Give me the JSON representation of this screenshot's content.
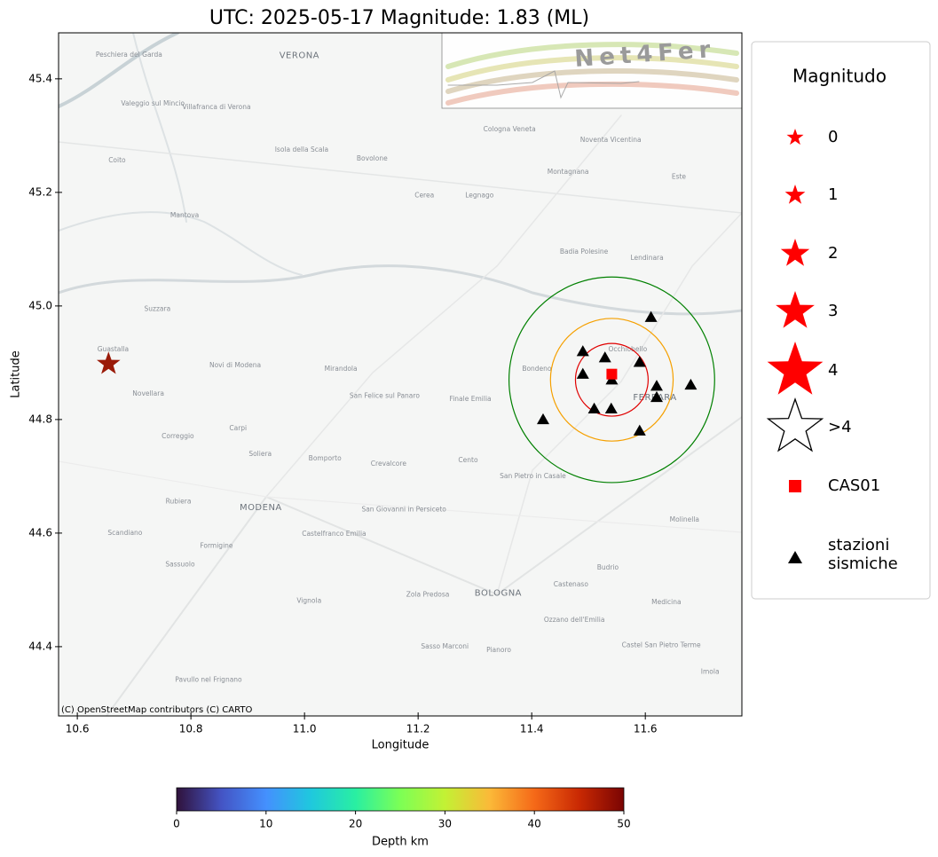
{
  "chart_data": {
    "type": "map",
    "title": "UTC: 2025-05-17 Magnitude: 1.83 (ML)",
    "x_label": "Longitude",
    "y_label": "Latitude",
    "xlim": [
      10.567,
      11.77
    ],
    "ylim": [
      44.278,
      45.481
    ],
    "xticks": [
      10.6,
      10.8,
      {
        "value": 11,
        "label": "11.0"
      },
      11.2,
      11.4,
      11.6
    ],
    "yticks": [
      44.4,
      44.6,
      44.8,
      {
        "value": 45,
        "label": "45.0"
      },
      45.2,
      45.4
    ],
    "attribution": "(C) OpenStreetMap contributors (C) CARTO",
    "logo_text": "Net4Fer",
    "epicenter": {
      "lon": 10.655,
      "lat": 44.898,
      "color": "#9a1a08"
    },
    "site": {
      "name": "CAS01",
      "lon": 11.541,
      "lat": 44.88,
      "color": "#ff0000"
    },
    "rings": {
      "lon": 11.541,
      "lat": 44.87,
      "radii": [
        0.064,
        0.108,
        0.181
      ],
      "colors": [
        "#e00000",
        "#f5a000",
        "#008000"
      ]
    },
    "stations": {
      "color": "#000000",
      "lon": [
        11.61,
        11.49,
        11.529,
        11.59,
        11.49,
        11.541,
        11.62,
        11.68,
        11.62,
        11.42,
        11.51,
        11.54,
        11.59
      ],
      "lat": [
        44.98,
        44.92,
        44.909,
        44.901,
        44.88,
        44.87,
        44.859,
        44.861,
        44.839,
        44.8,
        44.819,
        44.819,
        44.78
      ]
    },
    "legend": {
      "title": "Magnitudo",
      "magnitudes": [
        "0",
        "1",
        "2",
        "3",
        "4",
        ">4"
      ],
      "star_color": "#ff0000",
      "site_label": "CAS01",
      "station_label": [
        "stazioni",
        "sismiche"
      ]
    },
    "colorbar": {
      "label": "Depth km",
      "colormap": "turbo",
      "lim": [
        0,
        50
      ],
      "ticks": [
        0,
        10,
        20,
        30,
        40,
        50
      ]
    },
    "map_labels": [
      {
        "name": "VERONA",
        "lon": 10.991,
        "lat": 45.441,
        "major": true
      },
      {
        "name": "Peschiera del Garda",
        "lon": 10.691,
        "lat": 45.442
      },
      {
        "name": "Valeggio sul Mincio",
        "lon": 10.733,
        "lat": 45.356
      },
      {
        "name": "Villafranca di Verona",
        "lon": 10.845,
        "lat": 45.35
      },
      {
        "name": "Coito",
        "lon": 10.67,
        "lat": 45.256
      },
      {
        "name": "Mantova",
        "lon": 10.789,
        "lat": 45.159
      },
      {
        "name": "Isola della Scala",
        "lon": 10.995,
        "lat": 45.275
      },
      {
        "name": "Bovolone",
        "lon": 11.119,
        "lat": 45.259
      },
      {
        "name": "Cerea",
        "lon": 11.211,
        "lat": 45.194
      },
      {
        "name": "Legnago",
        "lon": 11.308,
        "lat": 45.194
      },
      {
        "name": "Cologna Veneta",
        "lon": 11.361,
        "lat": 45.311
      },
      {
        "name": "Montagnana",
        "lon": 11.464,
        "lat": 45.236
      },
      {
        "name": "Noventa Vicentina",
        "lon": 11.539,
        "lat": 45.292
      },
      {
        "name": "Este",
        "lon": 11.659,
        "lat": 45.227
      },
      {
        "name": "Badia Polesine",
        "lon": 11.492,
        "lat": 45.095
      },
      {
        "name": "Lendinara",
        "lon": 11.603,
        "lat": 45.084
      },
      {
        "name": "Suzzara",
        "lon": 10.741,
        "lat": 44.994
      },
      {
        "name": "Guastalla",
        "lon": 10.663,
        "lat": 44.923
      },
      {
        "name": "Novellara",
        "lon": 10.725,
        "lat": 44.845
      },
      {
        "name": "Novi di Modena",
        "lon": 10.878,
        "lat": 44.895
      },
      {
        "name": "Mirandola",
        "lon": 11.064,
        "lat": 44.889
      },
      {
        "name": "San Felice sul Panaro",
        "lon": 11.141,
        "lat": 44.841
      },
      {
        "name": "Finale Emilia",
        "lon": 11.292,
        "lat": 44.836
      },
      {
        "name": "Bondeno",
        "lon": 11.409,
        "lat": 44.889
      },
      {
        "name": "Occhiobello",
        "lon": 11.569,
        "lat": 44.923
      },
      {
        "name": "FERRARA",
        "lon": 11.617,
        "lat": 44.839,
        "major": true
      },
      {
        "name": "Correggio",
        "lon": 10.777,
        "lat": 44.77
      },
      {
        "name": "Carpi",
        "lon": 10.883,
        "lat": 44.784
      },
      {
        "name": "Soliera",
        "lon": 10.922,
        "lat": 44.739
      },
      {
        "name": "Bomporto",
        "lon": 11.036,
        "lat": 44.731
      },
      {
        "name": "Crevalcore",
        "lon": 11.148,
        "lat": 44.722
      },
      {
        "name": "Cento",
        "lon": 11.288,
        "lat": 44.728
      },
      {
        "name": "San Pietro in Casale",
        "lon": 11.402,
        "lat": 44.7
      },
      {
        "name": "MODENA",
        "lon": 10.923,
        "lat": 44.645,
        "major": true
      },
      {
        "name": "Rubiera",
        "lon": 10.778,
        "lat": 44.655
      },
      {
        "name": "Scandiano",
        "lon": 10.684,
        "lat": 44.6
      },
      {
        "name": "Castelfranco Emilia",
        "lon": 11.052,
        "lat": 44.598
      },
      {
        "name": "San Giovanni in Persiceto",
        "lon": 11.175,
        "lat": 44.641
      },
      {
        "name": "Formigine",
        "lon": 10.845,
        "lat": 44.577
      },
      {
        "name": "Sassuolo",
        "lon": 10.781,
        "lat": 44.544
      },
      {
        "name": "Molinella",
        "lon": 11.669,
        "lat": 44.623
      },
      {
        "name": "Budrio",
        "lon": 11.534,
        "lat": 44.539
      },
      {
        "name": "Castenaso",
        "lon": 11.469,
        "lat": 44.509
      },
      {
        "name": "BOLOGNA",
        "lon": 11.341,
        "lat": 44.494,
        "major": true
      },
      {
        "name": "Medicina",
        "lon": 11.637,
        "lat": 44.478
      },
      {
        "name": "Vignola",
        "lon": 11.008,
        "lat": 44.48
      },
      {
        "name": "Zola Predosa",
        "lon": 11.217,
        "lat": 44.491
      },
      {
        "name": "Ozzano dell'Emilia",
        "lon": 11.475,
        "lat": 44.447
      },
      {
        "name": "Sasso Marconi",
        "lon": 11.247,
        "lat": 44.4
      },
      {
        "name": "Pianoro",
        "lon": 11.342,
        "lat": 44.394
      },
      {
        "name": "Castel San Pietro Terme",
        "lon": 11.628,
        "lat": 44.402
      },
      {
        "name": "Pavullo nel Frignano",
        "lon": 10.831,
        "lat": 44.341
      },
      {
        "name": "Imola",
        "lon": 11.714,
        "lat": 44.355
      }
    ]
  }
}
